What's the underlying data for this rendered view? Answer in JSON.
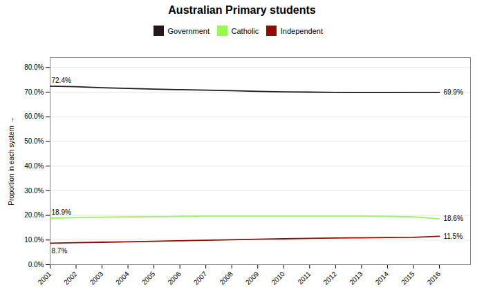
{
  "chart_data": {
    "type": "line",
    "title": "Australian Primary students",
    "ylabel": "Proportion in each system",
    "x": [
      2001,
      2002,
      2003,
      2004,
      2005,
      2006,
      2007,
      2008,
      2009,
      2010,
      2011,
      2012,
      2013,
      2014,
      2015,
      2016
    ],
    "series": [
      {
        "name": "Government",
        "values": [
          0.724,
          0.722,
          0.718,
          0.715,
          0.712,
          0.71,
          0.708,
          0.706,
          0.703,
          0.701,
          0.7,
          0.699,
          0.698,
          0.698,
          0.699,
          0.699
        ]
      },
      {
        "name": "Catholic",
        "values": [
          0.189,
          0.191,
          0.193,
          0.194,
          0.195,
          0.196,
          0.197,
          0.197,
          0.197,
          0.197,
          0.197,
          0.197,
          0.197,
          0.196,
          0.194,
          0.186
        ]
      },
      {
        "name": "Independent",
        "values": [
          0.087,
          0.089,
          0.091,
          0.093,
          0.095,
          0.097,
          0.099,
          0.101,
          0.103,
          0.105,
          0.107,
          0.108,
          0.109,
          0.11,
          0.111,
          0.115
        ]
      }
    ],
    "annotations": [
      {
        "text": "72.4%",
        "x": 2001,
        "y": 0.724
      },
      {
        "text": "18.9%",
        "x": 2001,
        "y": 0.189
      },
      {
        "text": "8.7%",
        "x": 2001,
        "y": 0.087
      },
      {
        "text": "69.9%",
        "x": 2016,
        "y": 0.699
      },
      {
        "text": "18.6%",
        "x": 2016,
        "y": 0.186
      },
      {
        "text": "11.5%",
        "x": 2016,
        "y": 0.115
      }
    ],
    "xlim": [
      2001,
      2017.2
    ],
    "xticks": [
      2001,
      2002,
      2003,
      2004,
      2005,
      2006,
      2007,
      2008,
      2009,
      2010,
      2011,
      2012,
      2013,
      2014,
      2015,
      2016
    ],
    "ylim": [
      0.0,
      0.84
    ],
    "yticks": [
      {
        "value": 0.0,
        "label": "0.0%"
      },
      {
        "value": 0.1,
        "label": "10.0%"
      },
      {
        "value": 0.2,
        "label": "20.0%"
      },
      {
        "value": 0.3,
        "label": "30.0%"
      },
      {
        "value": 0.4,
        "label": "40.0%"
      },
      {
        "value": 0.5,
        "label": "50.0%"
      },
      {
        "value": 0.6,
        "label": "60.0%"
      },
      {
        "value": 0.7,
        "label": "70.0%"
      },
      {
        "value": 0.8,
        "label": "80.0%"
      }
    ],
    "grid": true,
    "legend": "top"
  }
}
